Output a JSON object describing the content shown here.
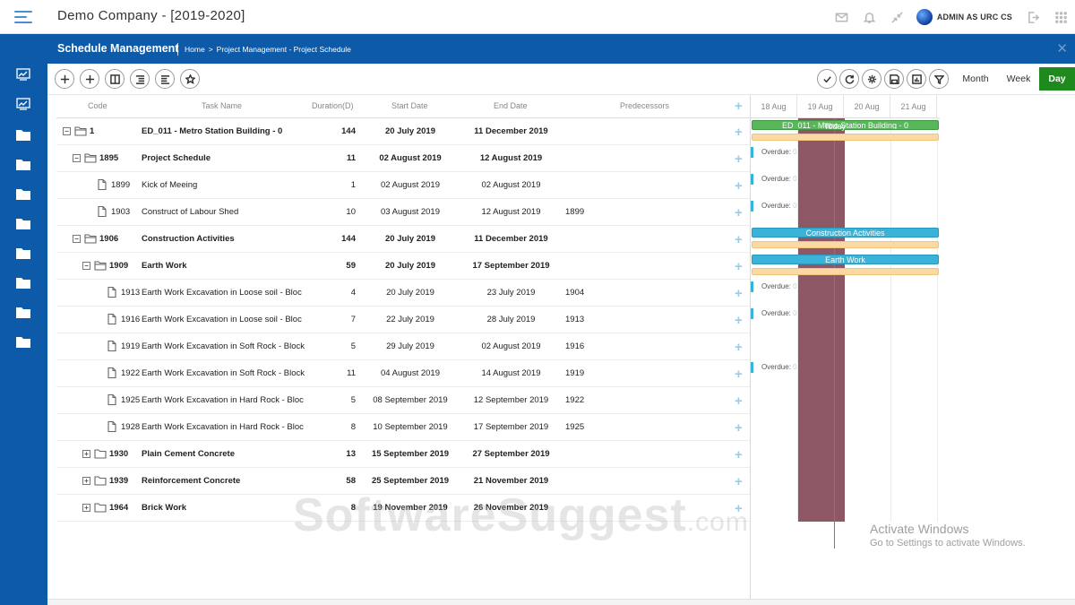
{
  "app": {
    "company_title": "Demo Company - [2019-2020]",
    "user_name": "ADMIN AS URC CS"
  },
  "module": {
    "title": "Schedule Management",
    "breadcrumb": {
      "home": "Home",
      "sep": ">",
      "path": "Project Management - Project Schedule"
    }
  },
  "views": {
    "month": "Month",
    "week": "Week",
    "day": "Day",
    "active": "Day"
  },
  "colors": {
    "brand": "#0d5aa8",
    "active_view": "#1e8a1e",
    "today_block": "#8d5765",
    "bar_green": "#57b75a",
    "bar_blue": "#3ab3d8",
    "baseline": "#fbd9a3"
  },
  "columns": {
    "code": "Code",
    "task": "Task Name",
    "duration": "Duration(D)",
    "start": "Start Date",
    "end": "End Date",
    "pred": "Predecessors"
  },
  "rows": [
    {
      "toggle": "−",
      "icon": "folder-open-icon",
      "code": "1",
      "task": "ED_011 - Metro Station Building - 0",
      "duration": "144",
      "start": "20 July 2019",
      "end": "11 December 2019",
      "pred": "",
      "bold": true
    },
    {
      "toggle": "−",
      "icon": "folder-open-icon",
      "code": "1895",
      "task": "Project Schedule",
      "duration": "11",
      "start": "02 August 2019",
      "end": "12 August 2019",
      "pred": "",
      "bold": true
    },
    {
      "toggle": "",
      "icon": "file-icon",
      "code": "1899",
      "task": "Kick of Meeing",
      "duration": "1",
      "start": "02 August 2019",
      "end": "02 August 2019",
      "pred": "",
      "bold": false
    },
    {
      "toggle": "",
      "icon": "file-icon",
      "code": "1903",
      "task": "Construct of Labour Shed",
      "duration": "10",
      "start": "03 August 2019",
      "end": "12 August 2019",
      "pred": "1899",
      "bold": false
    },
    {
      "toggle": "−",
      "icon": "folder-open-icon",
      "code": "1906",
      "task": "Construction Activities",
      "duration": "144",
      "start": "20 July 2019",
      "end": "11 December 2019",
      "pred": "",
      "bold": true
    },
    {
      "toggle": "−",
      "icon": "folder-open-icon",
      "code": "1909",
      "task": "Earth Work",
      "duration": "59",
      "start": "20 July 2019",
      "end": "17 September 2019",
      "pred": "",
      "bold": true
    },
    {
      "toggle": "",
      "icon": "file-icon",
      "code": "1913",
      "task": "Earth Work Excavation in Loose soil - Bloc",
      "duration": "4",
      "start": "20 July 2019",
      "end": "23 July 2019",
      "pred": "1904",
      "bold": false
    },
    {
      "toggle": "",
      "icon": "file-icon",
      "code": "1916",
      "task": "Earth Work Excavation in Loose soil - Bloc",
      "duration": "7",
      "start": "22 July 2019",
      "end": "28 July 2019",
      "pred": "1913",
      "bold": false
    },
    {
      "toggle": "",
      "icon": "file-icon",
      "code": "1919",
      "task": "Earth Work Excavation in Soft Rock - Block",
      "duration": "5",
      "start": "29 July 2019",
      "end": "02 August 2019",
      "pred": "1916",
      "bold": false
    },
    {
      "toggle": "",
      "icon": "file-icon",
      "code": "1922",
      "task": "Earth Work Excavation in Soft Rock - Block",
      "duration": "11",
      "start": "04 August 2019",
      "end": "14 August 2019",
      "pred": "1919",
      "bold": false
    },
    {
      "toggle": "",
      "icon": "file-icon",
      "code": "1925",
      "task": "Earth Work Excavation in Hard Rock - Bloc",
      "duration": "5",
      "start": "08 September 2019",
      "end": "12 September 2019",
      "pred": "1922",
      "bold": false
    },
    {
      "toggle": "",
      "icon": "file-icon",
      "code": "1928",
      "task": "Earth Work Excavation in Hard Rock - Bloc",
      "duration": "8",
      "start": "10 September 2019",
      "end": "17 September 2019",
      "pred": "1925",
      "bold": false
    },
    {
      "toggle": "+",
      "icon": "folder-icon",
      "code": "1930",
      "task": "Plain Cement Concrete",
      "duration": "13",
      "start": "15 September 2019",
      "end": "27 September 2019",
      "pred": "",
      "bold": true
    },
    {
      "toggle": "+",
      "icon": "folder-icon",
      "code": "1939",
      "task": "Reinforcement Concrete",
      "duration": "58",
      "start": "25 September 2019",
      "end": "21 November 2019",
      "pred": "",
      "bold": true
    },
    {
      "toggle": "+",
      "icon": "folder-icon",
      "code": "1964",
      "task": "Brick Work",
      "duration": "8",
      "start": "19 November 2019",
      "end": "26 November 2019",
      "pred": "",
      "bold": true
    }
  ],
  "gantt": {
    "days": [
      "18 Aug",
      "19 Aug",
      "20 Aug",
      "21 Aug"
    ],
    "today_label": "Today",
    "bars": [
      {
        "row": 0,
        "label": "ED_011 - Metro Station Building - 0",
        "color": "green"
      },
      {
        "row": 4,
        "label": "Construction Activities",
        "color": "blue"
      },
      {
        "row": 5,
        "label": "Earth Work",
        "color": "blue"
      }
    ],
    "overdue_label": "Overdue:",
    "overdue_prefix": "0",
    "overdue_rows": [
      1,
      2,
      3,
      6,
      7,
      9
    ]
  },
  "watermark": {
    "main": "SoftwareSuggest",
    "suffix": ".com"
  },
  "os_notice": {
    "line1": "Activate Windows",
    "line2": "Go to Settings to activate Windows."
  }
}
